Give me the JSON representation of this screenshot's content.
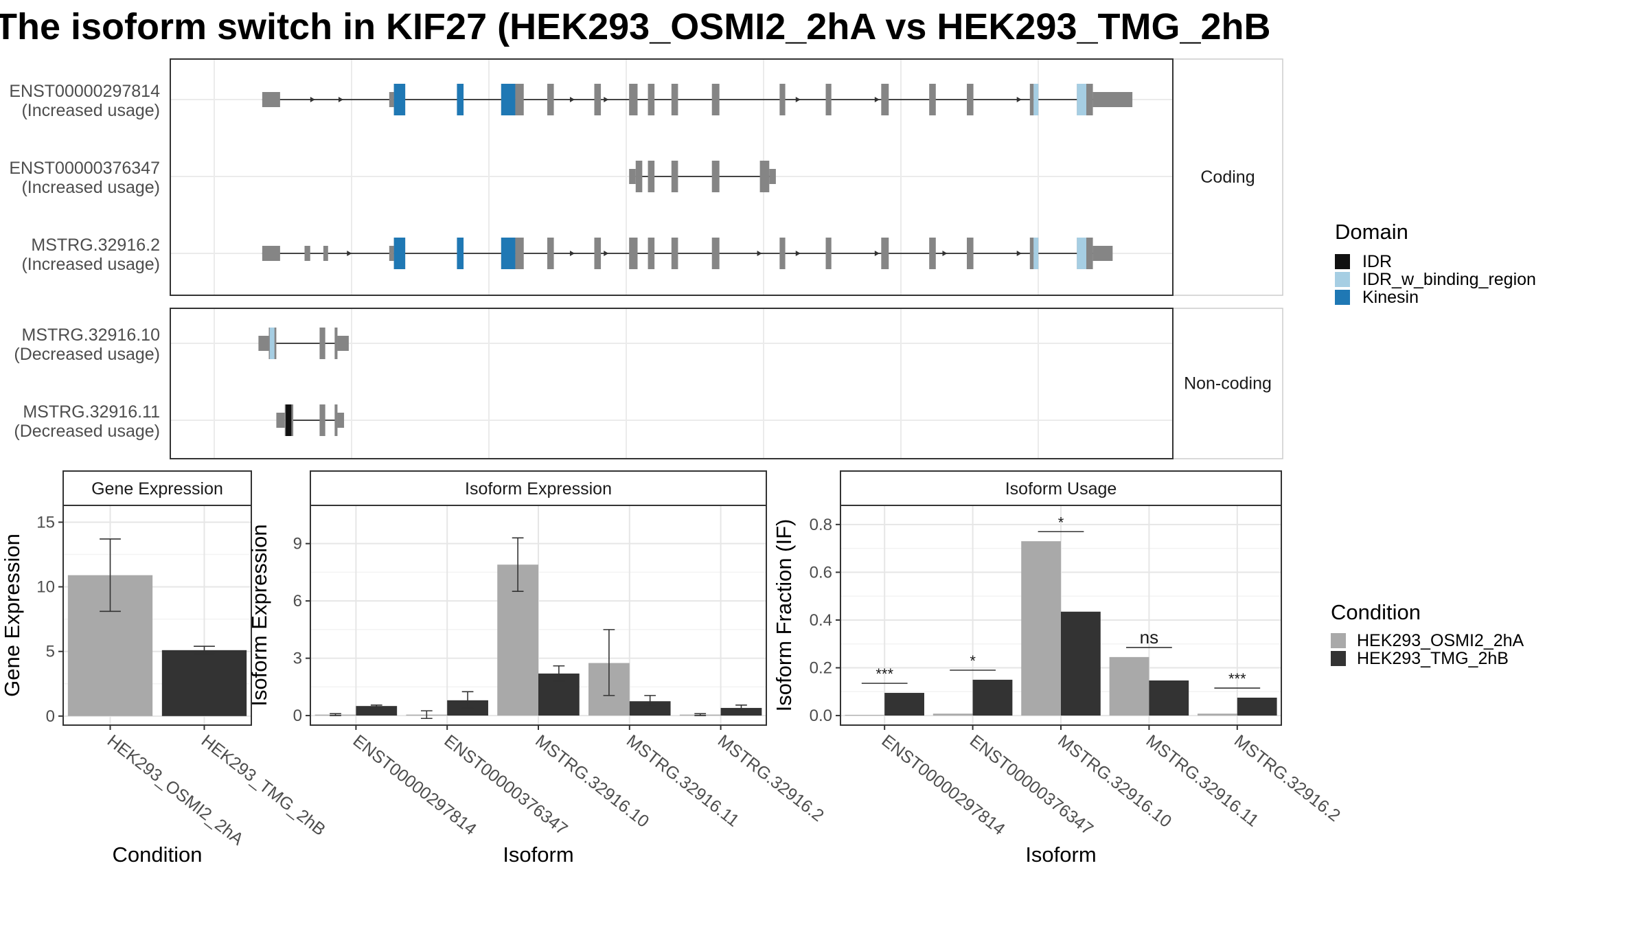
{
  "title": "The isoform switch in KIF27 (HEK293_OSMI2_2hA vs HEK293_TMG_2hB",
  "colors": {
    "exon": "#858585",
    "IDR": "#111111",
    "IDR_w_binding_region": "#a6cee3",
    "Kinesin": "#1f78b4",
    "cond1": "#a9a9a9",
    "cond2": "#333333"
  },
  "structure": {
    "x_range": [
      0,
      1000
    ],
    "groups": [
      {
        "label": "Coding",
        "tracks": [
          0,
          1,
          2
        ]
      },
      {
        "label": "Non-coding",
        "tracks": [
          3,
          4
        ]
      }
    ],
    "tracks": [
      {
        "name": "ENST00000297814",
        "usage": "(Increased usage)",
        "line": [
          51,
          971
        ],
        "exons": [
          [
            51,
            70,
            "thin"
          ],
          [
            186,
            191,
            "thin"
          ],
          [
            191,
            203,
            "full"
          ],
          [
            258,
            265,
            "full"
          ],
          [
            305,
            320,
            "full"
          ],
          [
            320,
            329,
            "full"
          ],
          [
            354,
            361,
            "full"
          ],
          [
            404,
            411,
            "full"
          ],
          [
            441,
            450,
            "full"
          ],
          [
            461,
            468,
            "full"
          ],
          [
            486,
            493,
            "full"
          ],
          [
            529,
            537,
            "full"
          ],
          [
            601,
            607,
            "full"
          ],
          [
            650,
            656,
            "full"
          ],
          [
            709,
            717,
            "full"
          ],
          [
            760,
            767,
            "full"
          ],
          [
            800,
            807,
            "full"
          ],
          [
            867,
            871,
            "full"
          ],
          [
            871,
            876,
            "full"
          ],
          [
            917,
            927,
            "full"
          ],
          [
            927,
            934,
            "full"
          ],
          [
            934,
            976,
            "thin"
          ]
        ],
        "domains": [
          [
            191,
            203,
            "Kinesin"
          ],
          [
            258,
            265,
            "Kinesin"
          ],
          [
            305,
            320,
            "Kinesin"
          ],
          [
            871,
            876,
            "IDR_w_binding_region"
          ],
          [
            917,
            927,
            "IDR_w_binding_region"
          ]
        ],
        "arrows": [
          105,
          135,
          381,
          417,
          621,
          705,
          856
        ]
      },
      {
        "name": "ENST00000376347",
        "usage": "(Increased usage)",
        "line": [
          448,
          595
        ],
        "exons": [
          [
            441,
            448,
            "thin"
          ],
          [
            448,
            455,
            "full"
          ],
          [
            461,
            468,
            "full"
          ],
          [
            486,
            493,
            "full"
          ],
          [
            529,
            537,
            "full"
          ],
          [
            580,
            590,
            "full"
          ],
          [
            590,
            597,
            "thin"
          ]
        ],
        "domains": [],
        "arrows": []
      },
      {
        "name": "MSTRG.32916.2",
        "usage": "(Increased usage)",
        "line": [
          51,
          950
        ],
        "exons": [
          [
            51,
            70,
            "thin"
          ],
          [
            96,
            102,
            "thin"
          ],
          [
            116,
            121,
            "thin"
          ],
          [
            186,
            191,
            "thin"
          ],
          [
            191,
            203,
            "full"
          ],
          [
            258,
            265,
            "full"
          ],
          [
            305,
            320,
            "full"
          ],
          [
            320,
            329,
            "full"
          ],
          [
            354,
            361,
            "full"
          ],
          [
            404,
            411,
            "full"
          ],
          [
            441,
            450,
            "full"
          ],
          [
            461,
            468,
            "full"
          ],
          [
            486,
            493,
            "full"
          ],
          [
            529,
            537,
            "full"
          ],
          [
            601,
            607,
            "full"
          ],
          [
            650,
            656,
            "full"
          ],
          [
            709,
            717,
            "full"
          ],
          [
            760,
            767,
            "full"
          ],
          [
            800,
            807,
            "full"
          ],
          [
            867,
            871,
            "full"
          ],
          [
            871,
            876,
            "full"
          ],
          [
            917,
            927,
            "full"
          ],
          [
            927,
            934,
            "full"
          ],
          [
            934,
            955,
            "thin"
          ]
        ],
        "domains": [
          [
            191,
            203,
            "Kinesin"
          ],
          [
            258,
            265,
            "Kinesin"
          ],
          [
            305,
            320,
            "Kinesin"
          ],
          [
            871,
            876,
            "IDR_w_binding_region"
          ],
          [
            917,
            927,
            "IDR_w_binding_region"
          ]
        ],
        "arrows": [
          144,
          381,
          417,
          580,
          621,
          705,
          777,
          856
        ]
      },
      {
        "name": "MSTRG.32916.10",
        "usage": "(Decreased usage)",
        "line": [
          58,
          130
        ],
        "exons": [
          [
            47,
            58,
            "thin"
          ],
          [
            58,
            66,
            "full"
          ],
          [
            112,
            118,
            "full"
          ],
          [
            128,
            131,
            "full"
          ],
          [
            131,
            143,
            "thin"
          ]
        ],
        "domains": [
          [
            59,
            64,
            "IDR_w_binding_region"
          ]
        ],
        "arrows": []
      },
      {
        "name": "MSTRG.32916.11",
        "usage": "(Decreased usage)",
        "line": [
          75,
          130
        ],
        "exons": [
          [
            66,
            75,
            "thin"
          ],
          [
            75,
            84,
            "full"
          ],
          [
            112,
            118,
            "full"
          ],
          [
            128,
            131,
            "full"
          ],
          [
            131,
            138,
            "thin"
          ]
        ],
        "domains": [
          [
            76,
            82,
            "IDR"
          ]
        ],
        "arrows": []
      }
    ]
  },
  "legend_domain": {
    "title": "Domain",
    "items": [
      {
        "label": "IDR",
        "key": "IDR"
      },
      {
        "label": "IDR_w_binding_region",
        "key": "IDR_w_binding_region"
      },
      {
        "label": "Kinesin",
        "key": "Kinesin"
      }
    ]
  },
  "legend_condition": {
    "title": "Condition",
    "items": [
      {
        "label": "HEK293_OSMI2_2hA",
        "key": "cond1"
      },
      {
        "label": "HEK293_TMG_2hB",
        "key": "cond2"
      }
    ]
  },
  "chart_data": [
    {
      "type": "bar",
      "title": "Gene Expression",
      "xlabel": "Condition",
      "ylabel": "Gene Expression",
      "ylim": [
        -0.7,
        16.3
      ],
      "yticks": [
        0,
        5,
        10,
        15
      ],
      "categories": [
        "HEK293_OSMI2_2hA",
        "HEK293_TMG_2hB"
      ],
      "values": [
        10.9,
        5.1
      ],
      "errors": [
        [
          8.1,
          13.7
        ],
        [
          4.8,
          5.4
        ]
      ]
    },
    {
      "type": "bar",
      "title": "Isoform Expression",
      "xlabel": "Isoform",
      "ylabel": "Isoform Expression",
      "ylim": [
        -0.5,
        11.0
      ],
      "yticks": [
        0,
        3,
        6,
        9
      ],
      "categories": [
        "ENST00000297814",
        "ENST00000376347",
        "MSTRG.32916.10",
        "MSTRG.32916.11",
        "MSTRG.32916.2"
      ],
      "series": [
        {
          "key": "cond1",
          "values": [
            0.05,
            0.05,
            7.9,
            2.75,
            0.05
          ],
          "errors": [
            [
              0.0,
              0.1
            ],
            [
              -0.15,
              0.25
            ],
            [
              6.5,
              9.3
            ],
            [
              1.05,
              4.5
            ],
            [
              0.0,
              0.1
            ]
          ]
        },
        {
          "key": "cond2",
          "values": [
            0.5,
            0.8,
            2.2,
            0.75,
            0.4
          ],
          "errors": [
            [
              0.45,
              0.55
            ],
            [
              0.4,
              1.25
            ],
            [
              1.8,
              2.6
            ],
            [
              0.5,
              1.05
            ],
            [
              0.25,
              0.55
            ]
          ]
        }
      ]
    },
    {
      "type": "bar",
      "title": "Isoform Usage",
      "xlabel": "Isoform",
      "ylabel": "Isoform Fraction (IF)",
      "ylim": [
        -0.04,
        0.88
      ],
      "yticks": [
        0.0,
        0.2,
        0.4,
        0.6,
        0.8
      ],
      "ytick_labels": [
        "0.0",
        "0.2",
        "0.4",
        "0.6",
        "0.8"
      ],
      "categories": [
        "ENST00000297814",
        "ENST00000376347",
        "MSTRG.32916.10",
        "MSTRG.32916.11",
        "MSTRG.32916.2"
      ],
      "series": [
        {
          "key": "cond1",
          "values": [
            0.003,
            0.008,
            0.73,
            0.245,
            0.008
          ]
        },
        {
          "key": "cond2",
          "values": [
            0.095,
            0.15,
            0.435,
            0.147,
            0.075
          ]
        }
      ],
      "significance": [
        {
          "label": "***",
          "y": 0.135
        },
        {
          "label": "*",
          "y": 0.19
        },
        {
          "label": "*",
          "y": 0.77
        },
        {
          "label": "ns",
          "y": 0.285
        },
        {
          "label": "***",
          "y": 0.115
        }
      ]
    }
  ]
}
